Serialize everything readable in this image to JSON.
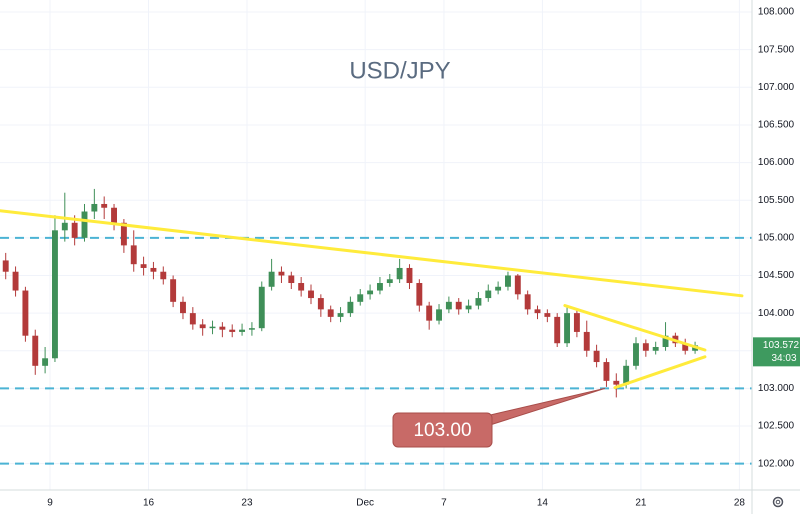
{
  "chart_data": {
    "type": "candlestick",
    "title": "USD/JPY",
    "x": [
      -2.25,
      -1.75,
      -1.25,
      -0.75,
      -0.25,
      0.25,
      0.75,
      1.25,
      1.75,
      2.25,
      2.75,
      3.25,
      3.75,
      4.25,
      4.75,
      5.25,
      5.75,
      6.25,
      6.75,
      7.25,
      7.75,
      8.25,
      8.75,
      9.25,
      9.75,
      10.25,
      10.75,
      11.25,
      11.75,
      12.25,
      12.75,
      13.25,
      13.75,
      14.25,
      14.75,
      15.25,
      15.75,
      16.25,
      16.75,
      17.25,
      17.75,
      18.25,
      18.75,
      19.25,
      19.75,
      20.25,
      20.75,
      21.25,
      21.75,
      22.25,
      22.75,
      23.25,
      23.75,
      24.25,
      24.75,
      25.25,
      25.75,
      26.25,
      26.75,
      27.25,
      27.75,
      28.25,
      28.75,
      29.25,
      29.75,
      30.25,
      30.75,
      31.25,
      31.75,
      32.25,
      32.75
    ],
    "open": [
      104.7,
      104.55,
      104.3,
      103.7,
      103.3,
      103.4,
      105.1,
      105.2,
      105.0,
      105.35,
      105.45,
      105.4,
      105.2,
      104.9,
      104.65,
      104.6,
      104.55,
      104.45,
      104.15,
      104.0,
      103.85,
      103.8,
      103.82,
      103.78,
      103.75,
      103.78,
      103.8,
      104.35,
      104.55,
      104.5,
      104.4,
      104.3,
      104.2,
      104.05,
      103.95,
      104.0,
      104.15,
      104.25,
      104.3,
      104.4,
      104.45,
      104.6,
      104.4,
      104.1,
      103.9,
      104.05,
      104.15,
      104.05,
      104.1,
      104.2,
      104.3,
      104.35,
      104.5,
      104.25,
      104.05,
      104.0,
      103.95,
      103.6,
      104.0,
      103.75,
      103.5,
      103.35,
      103.1,
      103.05,
      103.3,
      103.6,
      103.5,
      103.55,
      103.7,
      103.6,
      103.5
    ],
    "high": [
      104.8,
      104.62,
      104.35,
      103.78,
      103.55,
      105.3,
      105.6,
      105.3,
      105.45,
      105.65,
      105.55,
      105.45,
      105.25,
      105.1,
      104.75,
      104.68,
      104.62,
      104.5,
      104.22,
      104.08,
      103.92,
      103.9,
      103.88,
      103.85,
      103.86,
      103.88,
      104.42,
      104.72,
      104.62,
      104.55,
      104.48,
      104.38,
      104.25,
      104.1,
      104.08,
      104.22,
      104.32,
      104.38,
      104.48,
      104.52,
      104.72,
      104.65,
      104.45,
      104.15,
      104.12,
      104.22,
      104.2,
      104.18,
      104.28,
      104.38,
      104.42,
      104.55,
      104.52,
      104.3,
      104.1,
      104.05,
      104.0,
      104.1,
      104.05,
      103.9,
      103.58,
      103.4,
      103.2,
      103.38,
      103.68,
      103.65,
      103.62,
      103.88,
      103.74,
      103.66,
      103.62
    ],
    "low": [
      104.45,
      104.22,
      103.62,
      103.18,
      103.2,
      103.35,
      104.95,
      104.9,
      104.95,
      105.25,
      105.25,
      105.1,
      104.8,
      104.55,
      104.5,
      104.45,
      104.38,
      104.08,
      103.92,
      103.78,
      103.7,
      103.72,
      103.68,
      103.68,
      103.7,
      103.7,
      103.76,
      104.3,
      104.4,
      104.32,
      104.22,
      104.12,
      103.95,
      103.88,
      103.88,
      103.95,
      104.1,
      104.18,
      104.25,
      104.35,
      104.4,
      104.32,
      104.02,
      103.78,
      103.85,
      104.0,
      103.98,
      104.0,
      104.05,
      104.15,
      104.25,
      104.3,
      104.18,
      103.98,
      103.92,
      103.88,
      103.55,
      103.55,
      103.68,
      103.42,
      103.28,
      103.02,
      102.88,
      103.0,
      103.25,
      103.42,
      103.45,
      103.5,
      103.55,
      103.45,
      103.46
    ],
    "close": [
      104.55,
      104.3,
      103.7,
      103.3,
      103.4,
      105.1,
      105.2,
      105.0,
      105.35,
      105.45,
      105.4,
      105.2,
      104.9,
      104.65,
      104.6,
      104.55,
      104.45,
      104.15,
      104.0,
      103.85,
      103.8,
      103.82,
      103.78,
      103.75,
      103.78,
      103.8,
      104.35,
      104.55,
      104.5,
      104.4,
      104.3,
      104.2,
      104.05,
      103.95,
      104.0,
      104.15,
      104.25,
      104.3,
      104.4,
      104.45,
      104.6,
      104.4,
      104.1,
      103.9,
      104.05,
      104.15,
      104.05,
      104.1,
      104.2,
      104.3,
      104.35,
      104.5,
      104.25,
      104.05,
      104.0,
      103.95,
      103.6,
      104.0,
      103.75,
      103.5,
      103.35,
      103.1,
      103.05,
      103.3,
      103.6,
      103.5,
      103.55,
      103.7,
      103.6,
      103.5,
      103.572
    ],
    "up_color": "#3f8f58",
    "down_color": "#b33a3a",
    "xlim": [
      -2.54,
      35.64
    ],
    "xticks": [
      {
        "value": 0,
        "label": "9"
      },
      {
        "value": 5,
        "label": "16"
      },
      {
        "value": 10,
        "label": "23"
      },
      {
        "value": 16,
        "label": "Dec"
      },
      {
        "value": 20,
        "label": "7"
      },
      {
        "value": 25,
        "label": "14"
      },
      {
        "value": 30,
        "label": "21"
      },
      {
        "value": 35,
        "label": "28"
      }
    ],
    "ylim": [
      101.65,
      108.16
    ],
    "yticks": [
      {
        "value": 102,
        "label": "102.000"
      },
      {
        "value": 102.5,
        "label": "102.500"
      },
      {
        "value": 103,
        "label": "103.000"
      },
      {
        "value": 103.5,
        "label": "103.500"
      },
      {
        "value": 104,
        "label": "104.000"
      },
      {
        "value": 104.5,
        "label": "104.500"
      },
      {
        "value": 105,
        "label": "105.000"
      },
      {
        "value": 105.5,
        "label": "105.500"
      },
      {
        "value": 106,
        "label": "106.000"
      },
      {
        "value": 106.5,
        "label": "106.500"
      },
      {
        "value": 107,
        "label": "107.000"
      },
      {
        "value": 107.5,
        "label": "107.500"
      },
      {
        "value": 108,
        "label": "108.000"
      }
    ],
    "grid": true,
    "hlines": [
      105,
      103,
      102
    ],
    "hline_color": "#4bb3d4",
    "trendlines": [
      {
        "x": [
          -2.54,
          35.13
        ],
        "y": [
          105.36,
          104.23
        ]
      },
      {
        "x": [
          26.14,
          33.25
        ],
        "y": [
          104.1,
          103.51
        ]
      },
      {
        "x": [
          28.68,
          33.25
        ],
        "y": [
          103.01,
          103.42
        ]
      }
    ],
    "trendline_color": "#ffeb3b",
    "annotations": [
      {
        "text": "103.00",
        "x": 28.17,
        "y": 103
      }
    ],
    "annotation_color": "#c86a67",
    "last_price": 103.572,
    "last_price_color": "#3e9a5f",
    "countdown": "34:03"
  }
}
